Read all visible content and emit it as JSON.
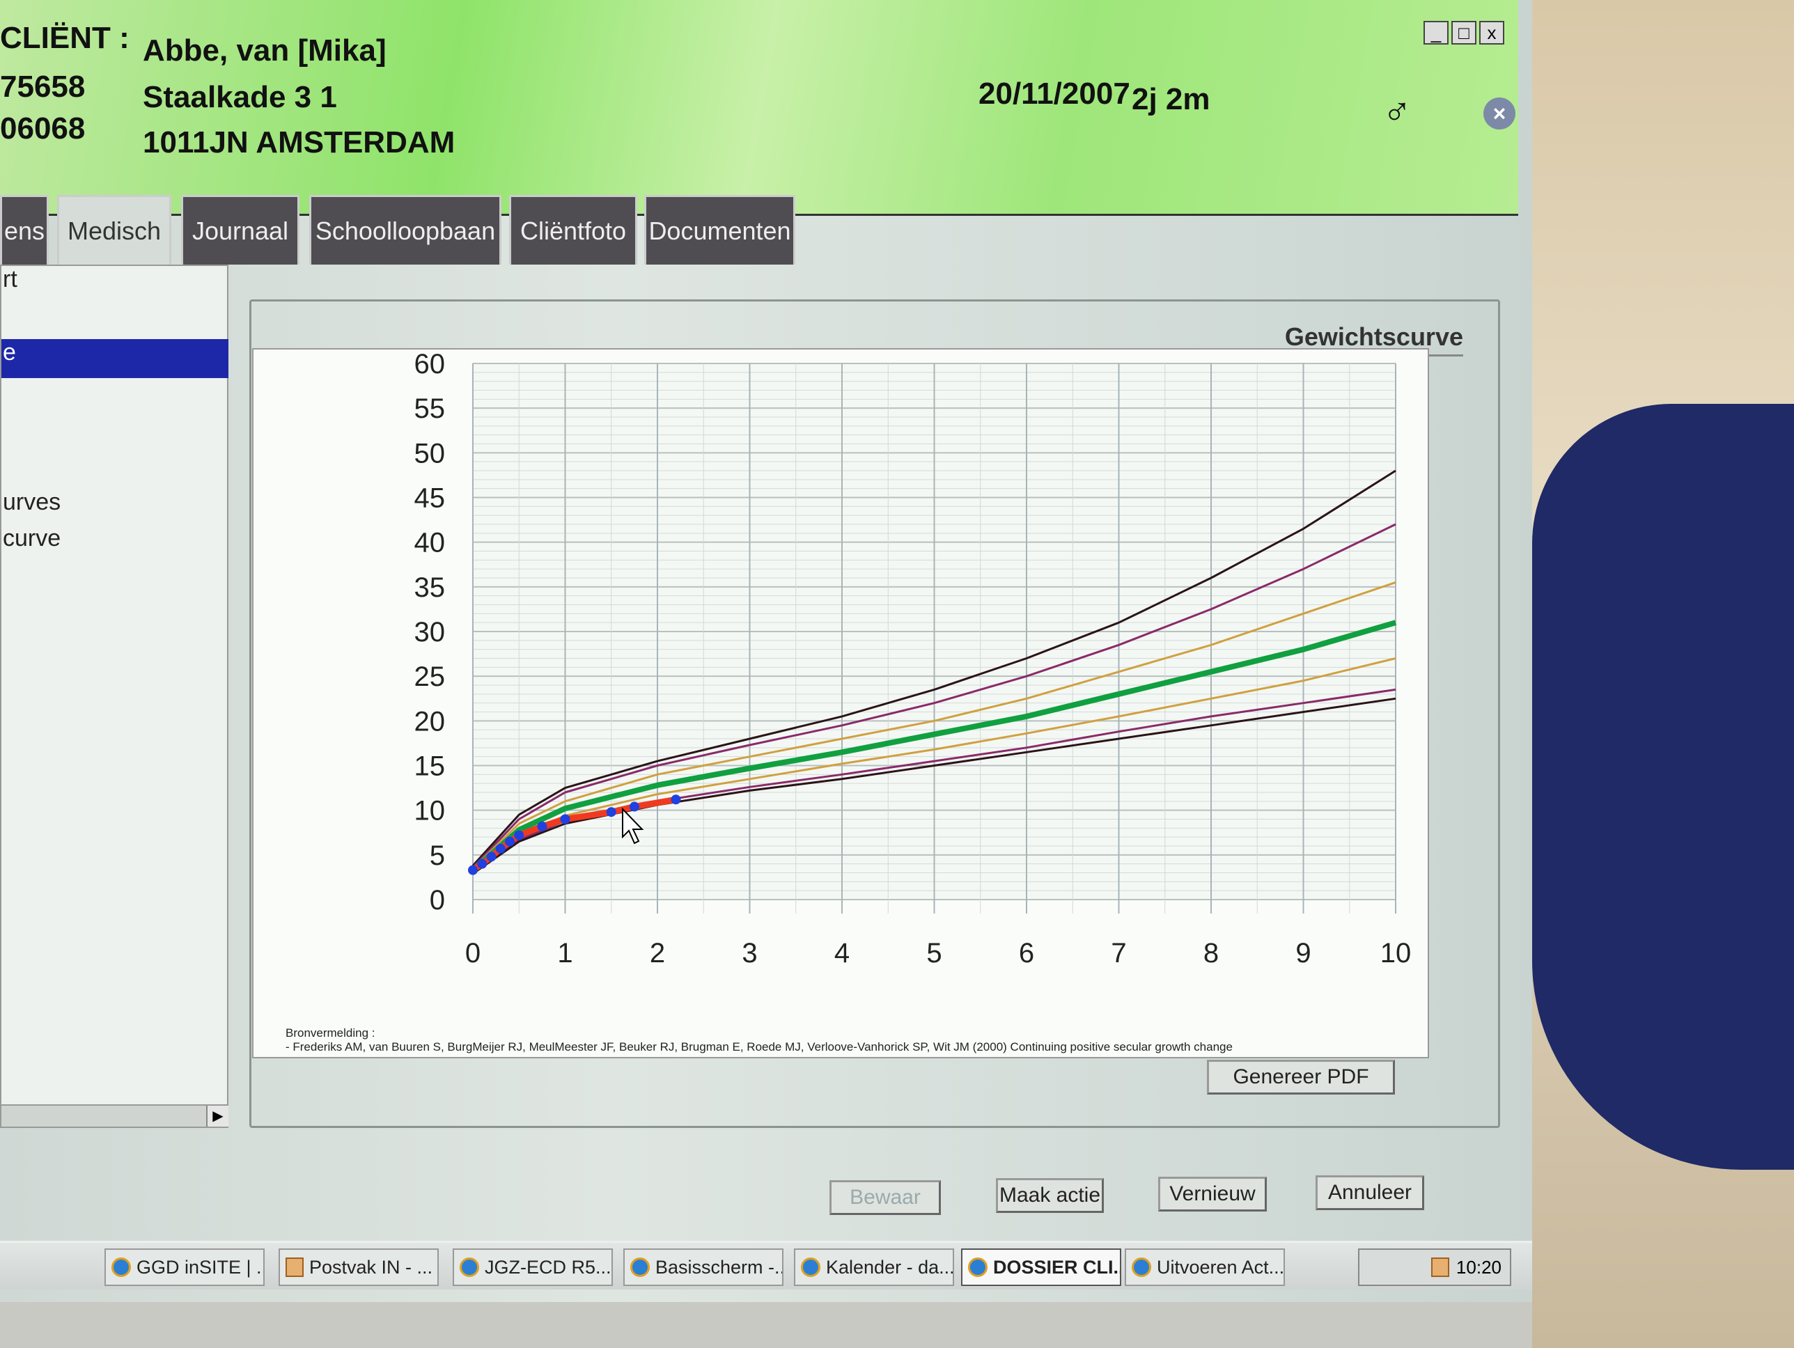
{
  "header": {
    "client_label": "CLIËNT :",
    "client_name": "Abbe, van [Mika]",
    "id1": "75658",
    "id2": "06068",
    "street": "Staalkade  3 1",
    "city": "1011JN  AMSTERDAM",
    "birthdate": "20/11/2007",
    "age": "2j 2m",
    "gender_symbol": "♂",
    "gender_icon": "male-icon"
  },
  "window": {
    "minimize": "_",
    "maximize": "□",
    "close": "x"
  },
  "tabs": [
    {
      "label": "ens"
    },
    {
      "label": "Medisch"
    },
    {
      "label": "Journaal"
    },
    {
      "label": "Schoolloopbaan"
    },
    {
      "label": "Cliëntfoto"
    },
    {
      "label": "Documenten"
    }
  ],
  "sidebar": {
    "items": [
      "rt",
      "e",
      "urves",
      "curve"
    ],
    "selected_index": 1
  },
  "panel": {
    "title": "Gewichtscurve",
    "source_heading": "Bronvermelding :",
    "source_text": "- Frederiks AM, van Buuren S, BurgMeijer RJ, MeulMeester JF, Beuker RJ, Brugman E, Roede MJ, Verloove-Vanhorick SP, Wit JM (2000) Continuing positive secular growth change",
    "generate_pdf": "Genereer PDF"
  },
  "buttons": {
    "save": "Bewaar",
    "action": "Maak actie",
    "refresh": "Vernieuw",
    "cancel": "Annuleer"
  },
  "taskbar": {
    "items": [
      {
        "label": "GGD inSITE | ...",
        "icon": "ie"
      },
      {
        "label": "Postvak IN - ...",
        "icon": "outlook"
      },
      {
        "label": "JGZ-ECD R5....",
        "icon": "ie"
      },
      {
        "label": "Basisscherm -...",
        "icon": "ie"
      },
      {
        "label": "Kalender - da...",
        "icon": "ie"
      },
      {
        "label": "DOSSIER CLI...",
        "icon": "ie",
        "active": true
      },
      {
        "label": "Uitvoeren Act...",
        "icon": "ie"
      }
    ],
    "clock": "10:20"
  },
  "chart_data": {
    "type": "line",
    "title": "Gewichtscurve",
    "xlim": [
      0,
      10
    ],
    "ylim": [
      0,
      60
    ],
    "x_ticks": [
      0,
      1,
      2,
      3,
      4,
      5,
      6,
      7,
      8,
      9,
      10
    ],
    "y_ticks": [
      0,
      5,
      10,
      15,
      20,
      25,
      30,
      35,
      40,
      45,
      50,
      55,
      60
    ],
    "grid": true,
    "x": [
      0,
      0.5,
      1,
      2,
      3,
      4,
      5,
      6,
      7,
      8,
      9,
      10
    ],
    "series": [
      {
        "values": [
          3.8,
          9.5,
          12.5,
          15.5,
          18,
          20.5,
          23.5,
          27,
          31,
          36,
          41.5,
          48
        ],
        "color": "#2a1418"
      },
      {
        "values": [
          3.6,
          9,
          12,
          15,
          17.3,
          19.5,
          22,
          25,
          28.5,
          32.5,
          37,
          42
        ],
        "color": "#8a2a6a"
      },
      {
        "values": [
          3.5,
          8.5,
          11,
          14,
          16,
          18,
          20,
          22.5,
          25.5,
          28.5,
          32,
          35.5
        ],
        "color": "#d0a040"
      },
      {
        "values": [
          3.3,
          7.8,
          10.2,
          12.8,
          14.7,
          16.5,
          18.5,
          20.5,
          23,
          25.5,
          28,
          31
        ],
        "color": "#10a040"
      },
      {
        "values": [
          3.1,
          7.2,
          9.4,
          11.8,
          13.5,
          15.2,
          16.8,
          18.6,
          20.5,
          22.5,
          24.5,
          27
        ],
        "color": "#d0a040"
      },
      {
        "values": [
          3.0,
          6.7,
          8.8,
          11,
          12.6,
          14,
          15.5,
          17,
          18.8,
          20.5,
          22,
          23.5
        ],
        "color": "#8a2a6a"
      },
      {
        "values": [
          2.9,
          6.5,
          8.5,
          10.6,
          12.2,
          13.5,
          15,
          16.5,
          18,
          19.5,
          21,
          22.5
        ],
        "color": "#2a1418"
      }
    ],
    "measurements": {
      "x": [
        0,
        0.1,
        0.2,
        0.3,
        0.4,
        0.5,
        0.75,
        1,
        1.5,
        1.75,
        2.2
      ],
      "y": [
        3.3,
        4,
        4.8,
        5.7,
        6.5,
        7.2,
        8.2,
        9,
        9.8,
        10.4,
        11.2
      ],
      "line_color": "#f03a20",
      "point_color": "#2040e0"
    }
  }
}
